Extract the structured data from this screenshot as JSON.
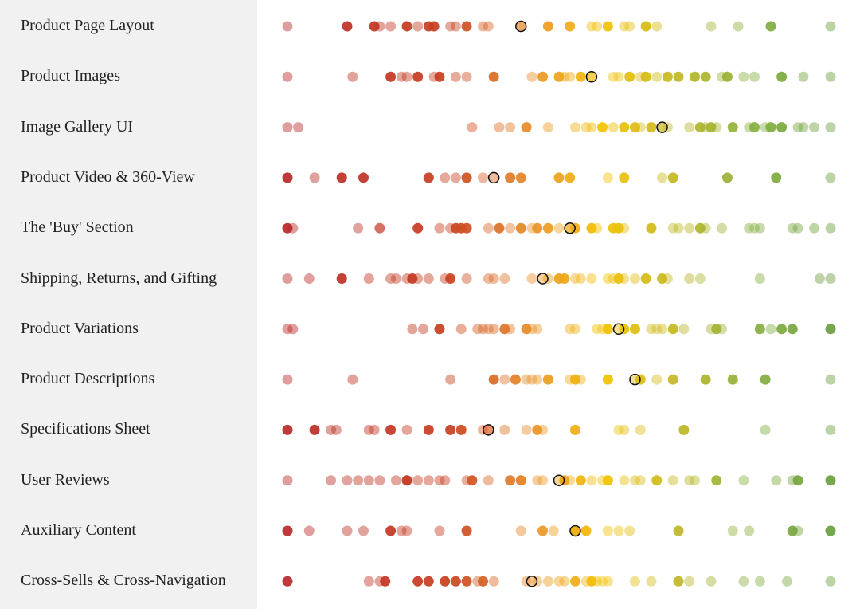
{
  "chart_data": {
    "type": "scatter",
    "title": "",
    "xlabel": "",
    "ylabel": "",
    "xlim": [
      0,
      100
    ],
    "grid": false,
    "color_scale": {
      "0": "#b82828",
      "30": "#c84020",
      "45": "#e8902a",
      "58": "#f5c200",
      "70": "#c8b820",
      "85": "#88b040",
      "100": "#6a9e3e"
    },
    "marker_color": "#111111",
    "rows": [
      {
        "label": "Product Page Layout",
        "values": [
          0,
          11,
          16,
          17,
          19,
          22,
          24,
          26,
          27,
          30,
          31,
          33,
          36,
          37,
          43,
          48,
          52,
          56,
          57,
          59,
          62,
          63,
          66,
          68,
          78,
          83,
          89,
          100
        ],
        "emphasized": [
          11,
          16,
          22,
          26,
          27,
          33,
          48,
          52,
          59,
          66,
          89
        ],
        "marker": 43
      },
      {
        "label": "Product Images",
        "values": [
          0,
          12,
          19,
          21,
          22,
          24,
          27,
          28,
          31,
          33,
          38,
          45,
          47,
          50,
          51,
          52,
          54,
          56,
          60,
          61,
          63,
          65,
          66,
          68,
          70,
          72,
          75,
          77,
          80,
          81,
          84,
          86,
          91,
          95,
          100
        ],
        "emphasized": [
          19,
          24,
          28,
          38,
          47,
          50,
          54,
          63,
          66,
          70,
          72,
          75,
          77,
          81,
          91
        ],
        "marker": 56
      },
      {
        "label": "Image Gallery UI",
        "values": [
          0,
          2,
          34,
          39,
          41,
          44,
          48,
          53,
          55,
          56,
          58,
          60,
          62,
          64,
          65,
          67,
          69,
          70,
          74,
          76,
          77,
          78,
          79,
          82,
          85,
          86,
          88,
          89,
          91,
          94,
          95,
          97,
          100
        ],
        "emphasized": [
          44,
          58,
          62,
          64,
          67,
          76,
          78,
          82,
          86,
          89,
          91
        ],
        "marker": 69
      },
      {
        "label": "Product Video & 360-View",
        "values": [
          0,
          5,
          10,
          14,
          26,
          29,
          31,
          33,
          36,
          41,
          43,
          50,
          52,
          59,
          62,
          69,
          71,
          81,
          90,
          100
        ],
        "emphasized": [
          0,
          10,
          14,
          26,
          33,
          41,
          43,
          50,
          52,
          62,
          71,
          81,
          90
        ],
        "marker": 38
      },
      {
        "label": "The 'Buy' Section",
        "values": [
          0,
          1,
          13,
          17,
          17,
          24,
          28,
          30,
          31,
          32,
          33,
          37,
          39,
          41,
          43,
          45,
          46,
          48,
          50,
          52,
          53,
          56,
          57,
          60,
          61,
          62,
          67,
          71,
          72,
          74,
          76,
          77,
          80,
          85,
          86,
          87,
          93,
          94,
          97,
          100
        ],
        "emphasized": [
          0,
          24,
          31,
          32,
          33,
          39,
          43,
          46,
          48,
          53,
          56,
          60,
          61,
          67,
          76
        ],
        "marker": 52
      },
      {
        "label": "Shipping, Returns, and Gifting",
        "values": [
          0,
          4,
          10,
          15,
          19,
          20,
          22,
          23,
          24,
          26,
          29,
          30,
          33,
          37,
          38,
          40,
          45,
          48,
          50,
          51,
          53,
          54,
          56,
          59,
          60,
          61,
          62,
          64,
          66,
          69,
          70,
          74,
          76,
          87,
          98,
          100
        ],
        "emphasized": [
          10,
          23,
          30,
          50,
          51,
          61,
          66,
          69
        ],
        "marker": 47
      },
      {
        "label": "Product Variations",
        "values": [
          0,
          1,
          23,
          25,
          28,
          32,
          35,
          36,
          37,
          38,
          40,
          41,
          44,
          45,
          46,
          52,
          53,
          57,
          58,
          59,
          62,
          64,
          67,
          68,
          69,
          71,
          73,
          78,
          79,
          80,
          87,
          89,
          91,
          93,
          100
        ],
        "emphasized": [
          28,
          40,
          44,
          59,
          62,
          64,
          71,
          79,
          87,
          91,
          93,
          100
        ],
        "marker": 61
      },
      {
        "label": "Product Descriptions",
        "values": [
          0,
          12,
          30,
          38,
          40,
          42,
          44,
          45,
          46,
          48,
          52,
          53,
          54,
          59,
          65,
          68,
          71,
          77,
          82,
          88,
          100
        ],
        "emphasized": [
          38,
          42,
          48,
          53,
          59,
          65,
          71,
          77,
          82,
          88
        ],
        "marker": 64
      },
      {
        "label": "Specifications Sheet",
        "values": [
          0,
          5,
          8,
          9,
          15,
          16,
          19,
          22,
          26,
          30,
          32,
          36,
          37,
          40,
          44,
          46,
          47,
          53,
          61,
          62,
          65,
          73,
          88,
          100
        ],
        "emphasized": [
          0,
          5,
          19,
          26,
          30,
          32,
          46,
          53,
          73
        ],
        "marker": 37
      },
      {
        "label": "User Reviews",
        "values": [
          0,
          8,
          11,
          13,
          15,
          17,
          20,
          22,
          22,
          24,
          26,
          28,
          29,
          33,
          34,
          37,
          41,
          43,
          43,
          46,
          47,
          51,
          52,
          54,
          56,
          58,
          59,
          62,
          64,
          65,
          68,
          71,
          74,
          75,
          79,
          84,
          90,
          93,
          94,
          100
        ],
        "emphasized": [
          22,
          34,
          41,
          43,
          51,
          54,
          59,
          68,
          79,
          94,
          100
        ],
        "marker": 50
      },
      {
        "label": "Auxiliary Content",
        "values": [
          0,
          4,
          11,
          14,
          19,
          21,
          22,
          28,
          33,
          43,
          47,
          49,
          53,
          55,
          59,
          61,
          63,
          72,
          82,
          85,
          93,
          94,
          100
        ],
        "emphasized": [
          0,
          19,
          33,
          47,
          53,
          55,
          72,
          93,
          100
        ],
        "marker": 53
      },
      {
        "label": "Cross-Sells & Cross-Navigation",
        "values": [
          0,
          15,
          17,
          18,
          24,
          26,
          29,
          31,
          33,
          35,
          36,
          38,
          44,
          46,
          48,
          50,
          51,
          53,
          55,
          56,
          57,
          58,
          59,
          64,
          67,
          72,
          74,
          78,
          84,
          87,
          92,
          100
        ],
        "emphasized": [
          0,
          18,
          24,
          26,
          29,
          31,
          33,
          36,
          53,
          56,
          72
        ],
        "marker": 45
      }
    ]
  }
}
